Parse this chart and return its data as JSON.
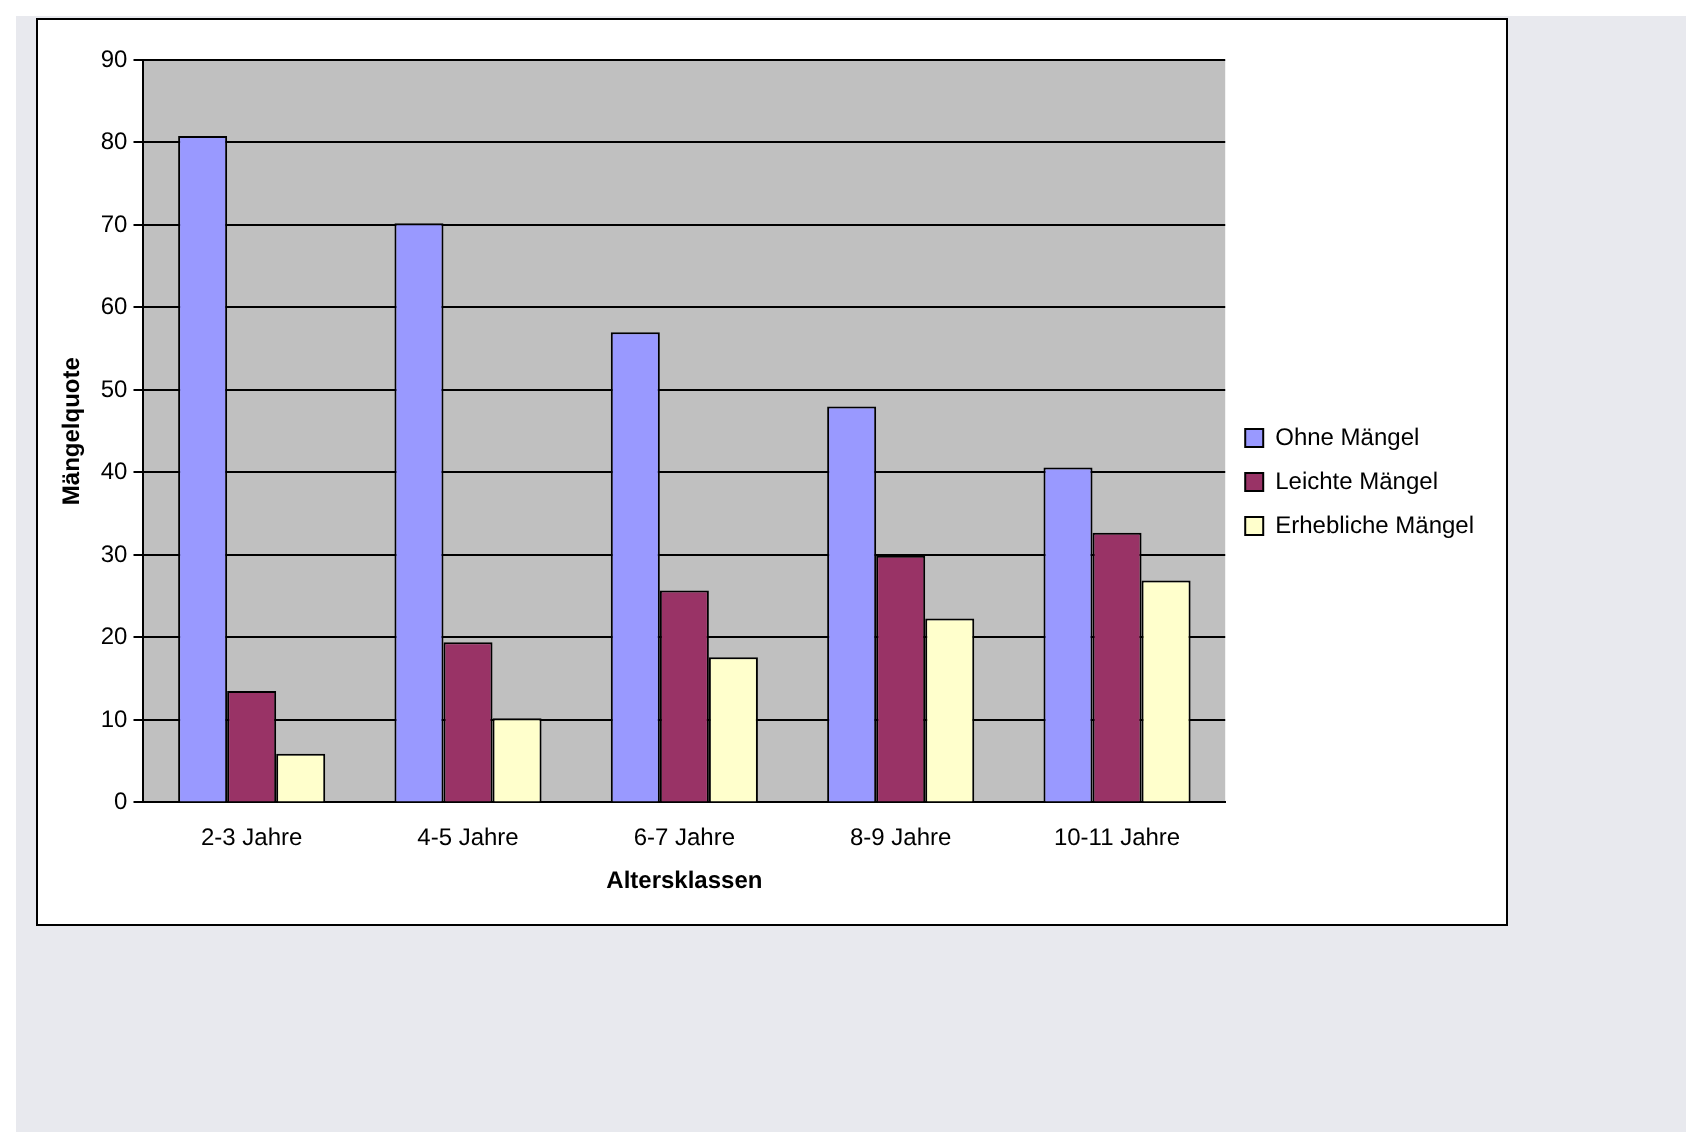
{
  "chart_data": {
    "type": "bar",
    "xlabel": "Altersklassen",
    "ylabel": "Mängelquote",
    "categories": [
      "2-3 Jahre",
      "4-5 Jahre",
      "6-7 Jahre",
      "8-9 Jahre",
      "10-11 Jahre"
    ],
    "series": [
      {
        "name": "Ohne Mängel",
        "color": "#9999ff",
        "values": [
          80.8,
          70.2,
          57.0,
          48.0,
          40.6
        ]
      },
      {
        "name": "Leichte Mängel",
        "color": "#993366",
        "values": [
          13.5,
          19.4,
          25.7,
          29.9,
          32.7
        ]
      },
      {
        "name": "Erhebliche Mängel",
        "color": "#ffffcc",
        "values": [
          5.9,
          10.2,
          17.6,
          22.3,
          26.9
        ]
      }
    ],
    "ylim": [
      0,
      90
    ],
    "yticks": [
      0,
      10,
      20,
      30,
      40,
      50,
      60,
      70,
      80,
      90
    ],
    "grid": "y",
    "legend": "right"
  }
}
